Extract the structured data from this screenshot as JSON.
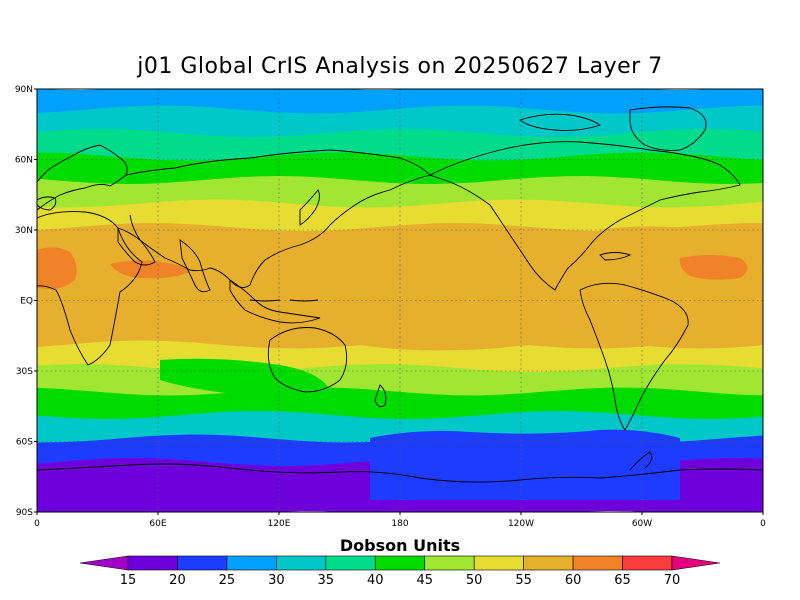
{
  "title": "j01 Global CrIS Analysis on 20250627 Layer 7",
  "y_tick_labels": [
    "90N",
    "60N",
    "30N",
    "EQ",
    "30S",
    "60S",
    "90S"
  ],
  "x_tick_labels": [
    "0",
    "60E",
    "120E",
    "180",
    "120W",
    "60W",
    "0"
  ],
  "colorbar": {
    "title": "Dobson Units",
    "levels": [
      "15",
      "20",
      "25",
      "30",
      "35",
      "40",
      "45",
      "50",
      "55",
      "60",
      "65",
      "70"
    ],
    "colors": [
      "#a000c8",
      "#6e00dc",
      "#1e3cff",
      "#00a0ff",
      "#00c8c8",
      "#00dc8c",
      "#00dc00",
      "#a0e632",
      "#e6dc32",
      "#e6af2d",
      "#f08228",
      "#fa3c3c",
      "#e6007e"
    ]
  },
  "chart_data": {
    "type": "heatmap",
    "title": "j01 Global CrIS Analysis on 20250627 Layer 7",
    "x": [
      "0",
      "60E",
      "120E",
      "180",
      "120W",
      "60W",
      "0"
    ],
    "y": [
      "90N",
      "60N",
      "30N",
      "EQ",
      "30S",
      "60S",
      "90S"
    ],
    "units": "Dobson Units",
    "zonal_profile": [
      {
        "lat": 85,
        "value": 27
      },
      {
        "lat": 75,
        "value": 32
      },
      {
        "lat": 65,
        "value": 38
      },
      {
        "lat": 55,
        "value": 43
      },
      {
        "lat": 45,
        "value": 48
      },
      {
        "lat": 35,
        "value": 52
      },
      {
        "lat": 25,
        "value": 57
      },
      {
        "lat": 15,
        "value": 57
      },
      {
        "lat": 5,
        "value": 58
      },
      {
        "lat": -5,
        "value": 57
      },
      {
        "lat": -15,
        "value": 55
      },
      {
        "lat": -25,
        "value": 52
      },
      {
        "lat": -35,
        "value": 47
      },
      {
        "lat": -45,
        "value": 40
      },
      {
        "lat": -55,
        "value": 32
      },
      {
        "lat": -65,
        "value": 24
      },
      {
        "lat": -75,
        "value": 19
      },
      {
        "lat": -85,
        "value": 17
      }
    ]
  }
}
